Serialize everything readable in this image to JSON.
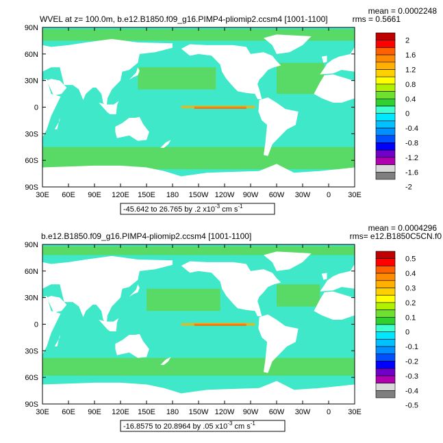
{
  "chart_data": [
    {
      "type": "heatmap",
      "title": "WVEL at z=  100.0m, b.e12.B1850.f09_g16.PIMP4-pliomip2.ccsm4 [1001-1100]",
      "stats": {
        "mean": "mean = 0.0002248",
        "rms": "rms = 0.5661"
      },
      "range_box": "-45.642 to 26.765 by .2 x10",
      "range_exp": "-3",
      "range_unit": " cm s",
      "range_unit_exp": "-1",
      "xticks": [
        "30E",
        "60E",
        "90E",
        "120E",
        "150E",
        "180",
        "150W",
        "120W",
        "90W",
        "60W",
        "30W",
        "0",
        "30E"
      ],
      "yticks": [
        "90N",
        "60N",
        "30N",
        "0",
        "30S",
        "60S",
        "90S"
      ],
      "colorbar": {
        "labels": [
          "2",
          "1.6",
          "1.2",
          "0.8",
          "0.4",
          "0",
          "-0.4",
          "-0.8",
          "-1.2",
          "-1.6",
          "-2"
        ]
      },
      "notes": "Ocean vertical velocity field; land masked white. Strong positive (red) equatorial upwelling band in Pacific."
    },
    {
      "type": "heatmap",
      "title": "b.e12.B1850.f09_g16.PIMP4-pliomip2.ccsm4 [1001-1100]",
      "stats": {
        "mean": "mean = 0.0004296",
        "rms": "rms= e12.B1850C5CN.f0"
      },
      "range_box": "-16.8575 to 20.8964 by .05 x10",
      "range_exp": "-3",
      "range_unit": " cm s",
      "range_unit_exp": "-1",
      "xticks": [
        "30E",
        "60E",
        "90E",
        "120E",
        "150E",
        "180",
        "150W",
        "120W",
        "90W",
        "60W",
        "30W",
        "0",
        "30E"
      ],
      "yticks": [
        "90N",
        "60N",
        "30N",
        "0",
        "30S",
        "60S",
        "90S"
      ],
      "colorbar": {
        "labels": [
          "0.5",
          "0.4",
          "0.3",
          "0.2",
          "0.1",
          "0",
          "-0.1",
          "-0.2",
          "-0.3",
          "-0.4",
          "-0.5"
        ]
      },
      "notes": "Difference field; mostly near zero with equatorial Pacific positive band."
    }
  ],
  "colors": {
    "levels": [
      "#7f7f7f",
      "#d9d9d9",
      "#b000b0",
      "#7000c8",
      "#0000ff",
      "#0050ff",
      "#0090ff",
      "#00c0ff",
      "#00e8ff",
      "#40ffd0",
      "#30d030",
      "#70e030",
      "#b0f000",
      "#ffff00",
      "#ffd000",
      "#ffb000",
      "#ff8c00",
      "#ff6000",
      "#ff0000",
      "#c00000"
    ],
    "ocean": "#3fe8c8",
    "ocean_alt": "#5cd85c",
    "land": "#ffffff"
  }
}
